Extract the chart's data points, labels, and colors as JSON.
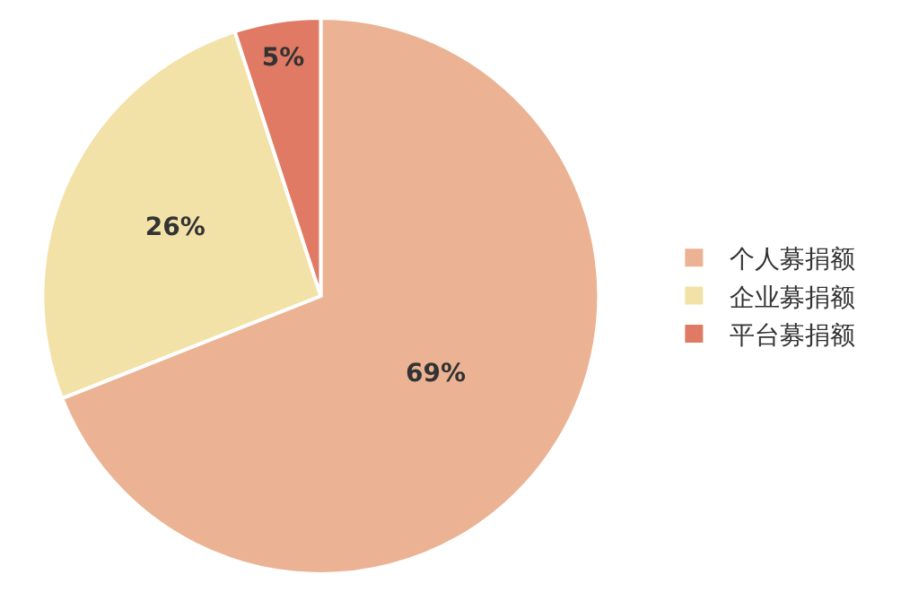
{
  "chart_data": {
    "type": "pie",
    "categories": [
      "个人募捐额",
      "企业募捐额",
      "平台募捐额"
    ],
    "values": [
      69,
      26,
      5
    ],
    "value_labels": [
      "69%",
      "26%",
      "5%"
    ],
    "colors": [
      "#ebb393",
      "#f2e2a8",
      "#e07a64"
    ],
    "legend": "right"
  }
}
